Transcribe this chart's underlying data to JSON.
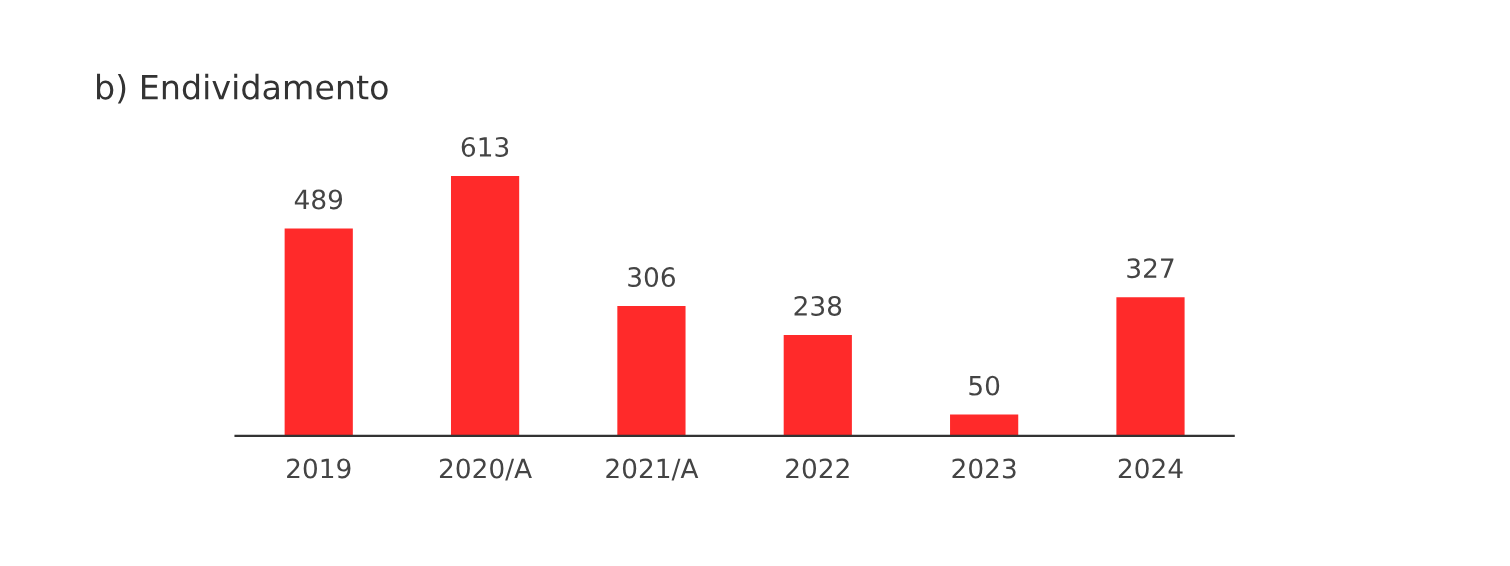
{
  "chart_data": {
    "type": "bar",
    "title": "b) Endividamento",
    "categories": [
      "2019",
      "2020/A",
      "2021/A",
      "2022",
      "2023",
      "2024"
    ],
    "values": [
      489,
      613,
      306,
      238,
      50,
      327
    ],
    "color": "#ff2a2a",
    "data_labels": true,
    "grid": false,
    "legend": false
  }
}
